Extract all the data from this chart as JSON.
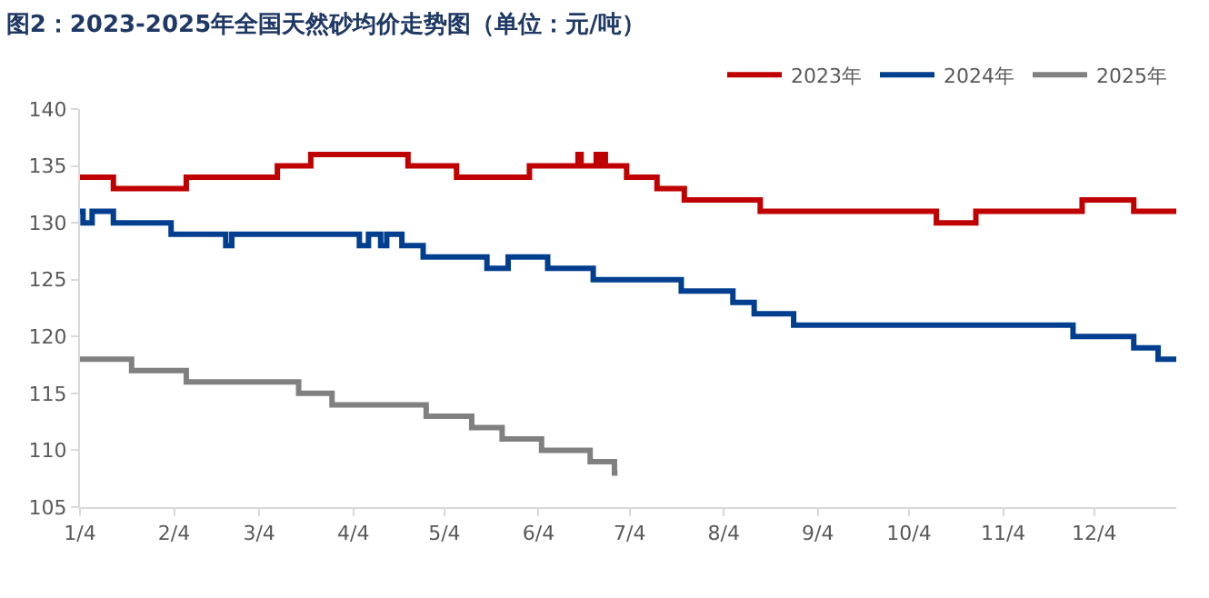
{
  "chart_data": {
    "type": "step",
    "title": "图2：2023-2025年全国天然砂均价走势图（单位：元/吨）",
    "legend": "top right",
    "xlim": [
      "--01-04",
      "--12-31"
    ],
    "xticks": [
      {
        "value": "--01-04",
        "label": "1/4"
      },
      {
        "value": "--02-04",
        "label": "2/4"
      },
      {
        "value": "--03-04",
        "label": "3/4"
      },
      {
        "value": "--04-04",
        "label": "4/4"
      },
      {
        "value": "--05-04",
        "label": "5/4"
      },
      {
        "value": "--06-04",
        "label": "6/4"
      },
      {
        "value": "--07-04",
        "label": "7/4"
      },
      {
        "value": "--08-04",
        "label": "8/4"
      },
      {
        "value": "--09-04",
        "label": "9/4"
      },
      {
        "value": "--10-04",
        "label": "10/4"
      },
      {
        "value": "--11-04",
        "label": "11/4"
      },
      {
        "value": "--12-04",
        "label": "12/4"
      }
    ],
    "ylim": [
      105,
      140
    ],
    "yticks": [
      105,
      110,
      115,
      120,
      125,
      130,
      135,
      140
    ],
    "series": [
      {
        "name": "2023年",
        "color": "#c00000",
        "x": [
          "--01-04",
          "--01-15",
          "--02-08",
          "--03-10",
          "--03-21",
          "--04-22",
          "--05-08",
          "--06-01",
          "--06-17",
          "--06-18",
          "--06-23",
          "--06-24",
          "--06-25",
          "--06-26",
          "--07-03",
          "--07-13",
          "--07-22",
          "--08-16",
          "--10-13",
          "--10-26",
          "--11-30",
          "--12-17",
          "--12-31"
        ],
        "values": [
          134,
          133,
          134,
          135,
          136,
          135,
          134,
          135,
          136,
          135,
          136,
          135,
          136,
          135,
          134,
          133,
          132,
          131,
          130,
          131,
          132,
          131,
          131
        ]
      },
      {
        "name": "2024年",
        "color": "#003f8f",
        "x": [
          "--01-04",
          "--01-05",
          "--01-08",
          "--01-15",
          "--02-03",
          "--02-21",
          "--02-23",
          "--04-06",
          "--04-09",
          "--04-13",
          "--04-15",
          "--04-20",
          "--04-27",
          "--05-18",
          "--05-25",
          "--06-07",
          "--06-22",
          "--07-21",
          "--08-07",
          "--08-14",
          "--08-27",
          "--11-27",
          "--12-17",
          "--12-25",
          "--12-31"
        ],
        "values": [
          131,
          130,
          131,
          130,
          129,
          128,
          129,
          128,
          129,
          128,
          129,
          128,
          127,
          126,
          127,
          126,
          125,
          124,
          123,
          122,
          121,
          120,
          119,
          118,
          118
        ]
      },
      {
        "name": "2025年",
        "color": "#808080",
        "x": [
          "--01-04",
          "--01-21",
          "--02-08",
          "--03-17",
          "--03-28",
          "--04-28",
          "--05-13",
          "--05-23",
          "--06-05",
          "--06-21",
          "--06-29",
          "--06-30"
        ],
        "values": [
          118,
          117,
          116,
          115,
          114,
          113,
          112,
          111,
          110,
          109,
          108,
          108
        ]
      }
    ]
  }
}
